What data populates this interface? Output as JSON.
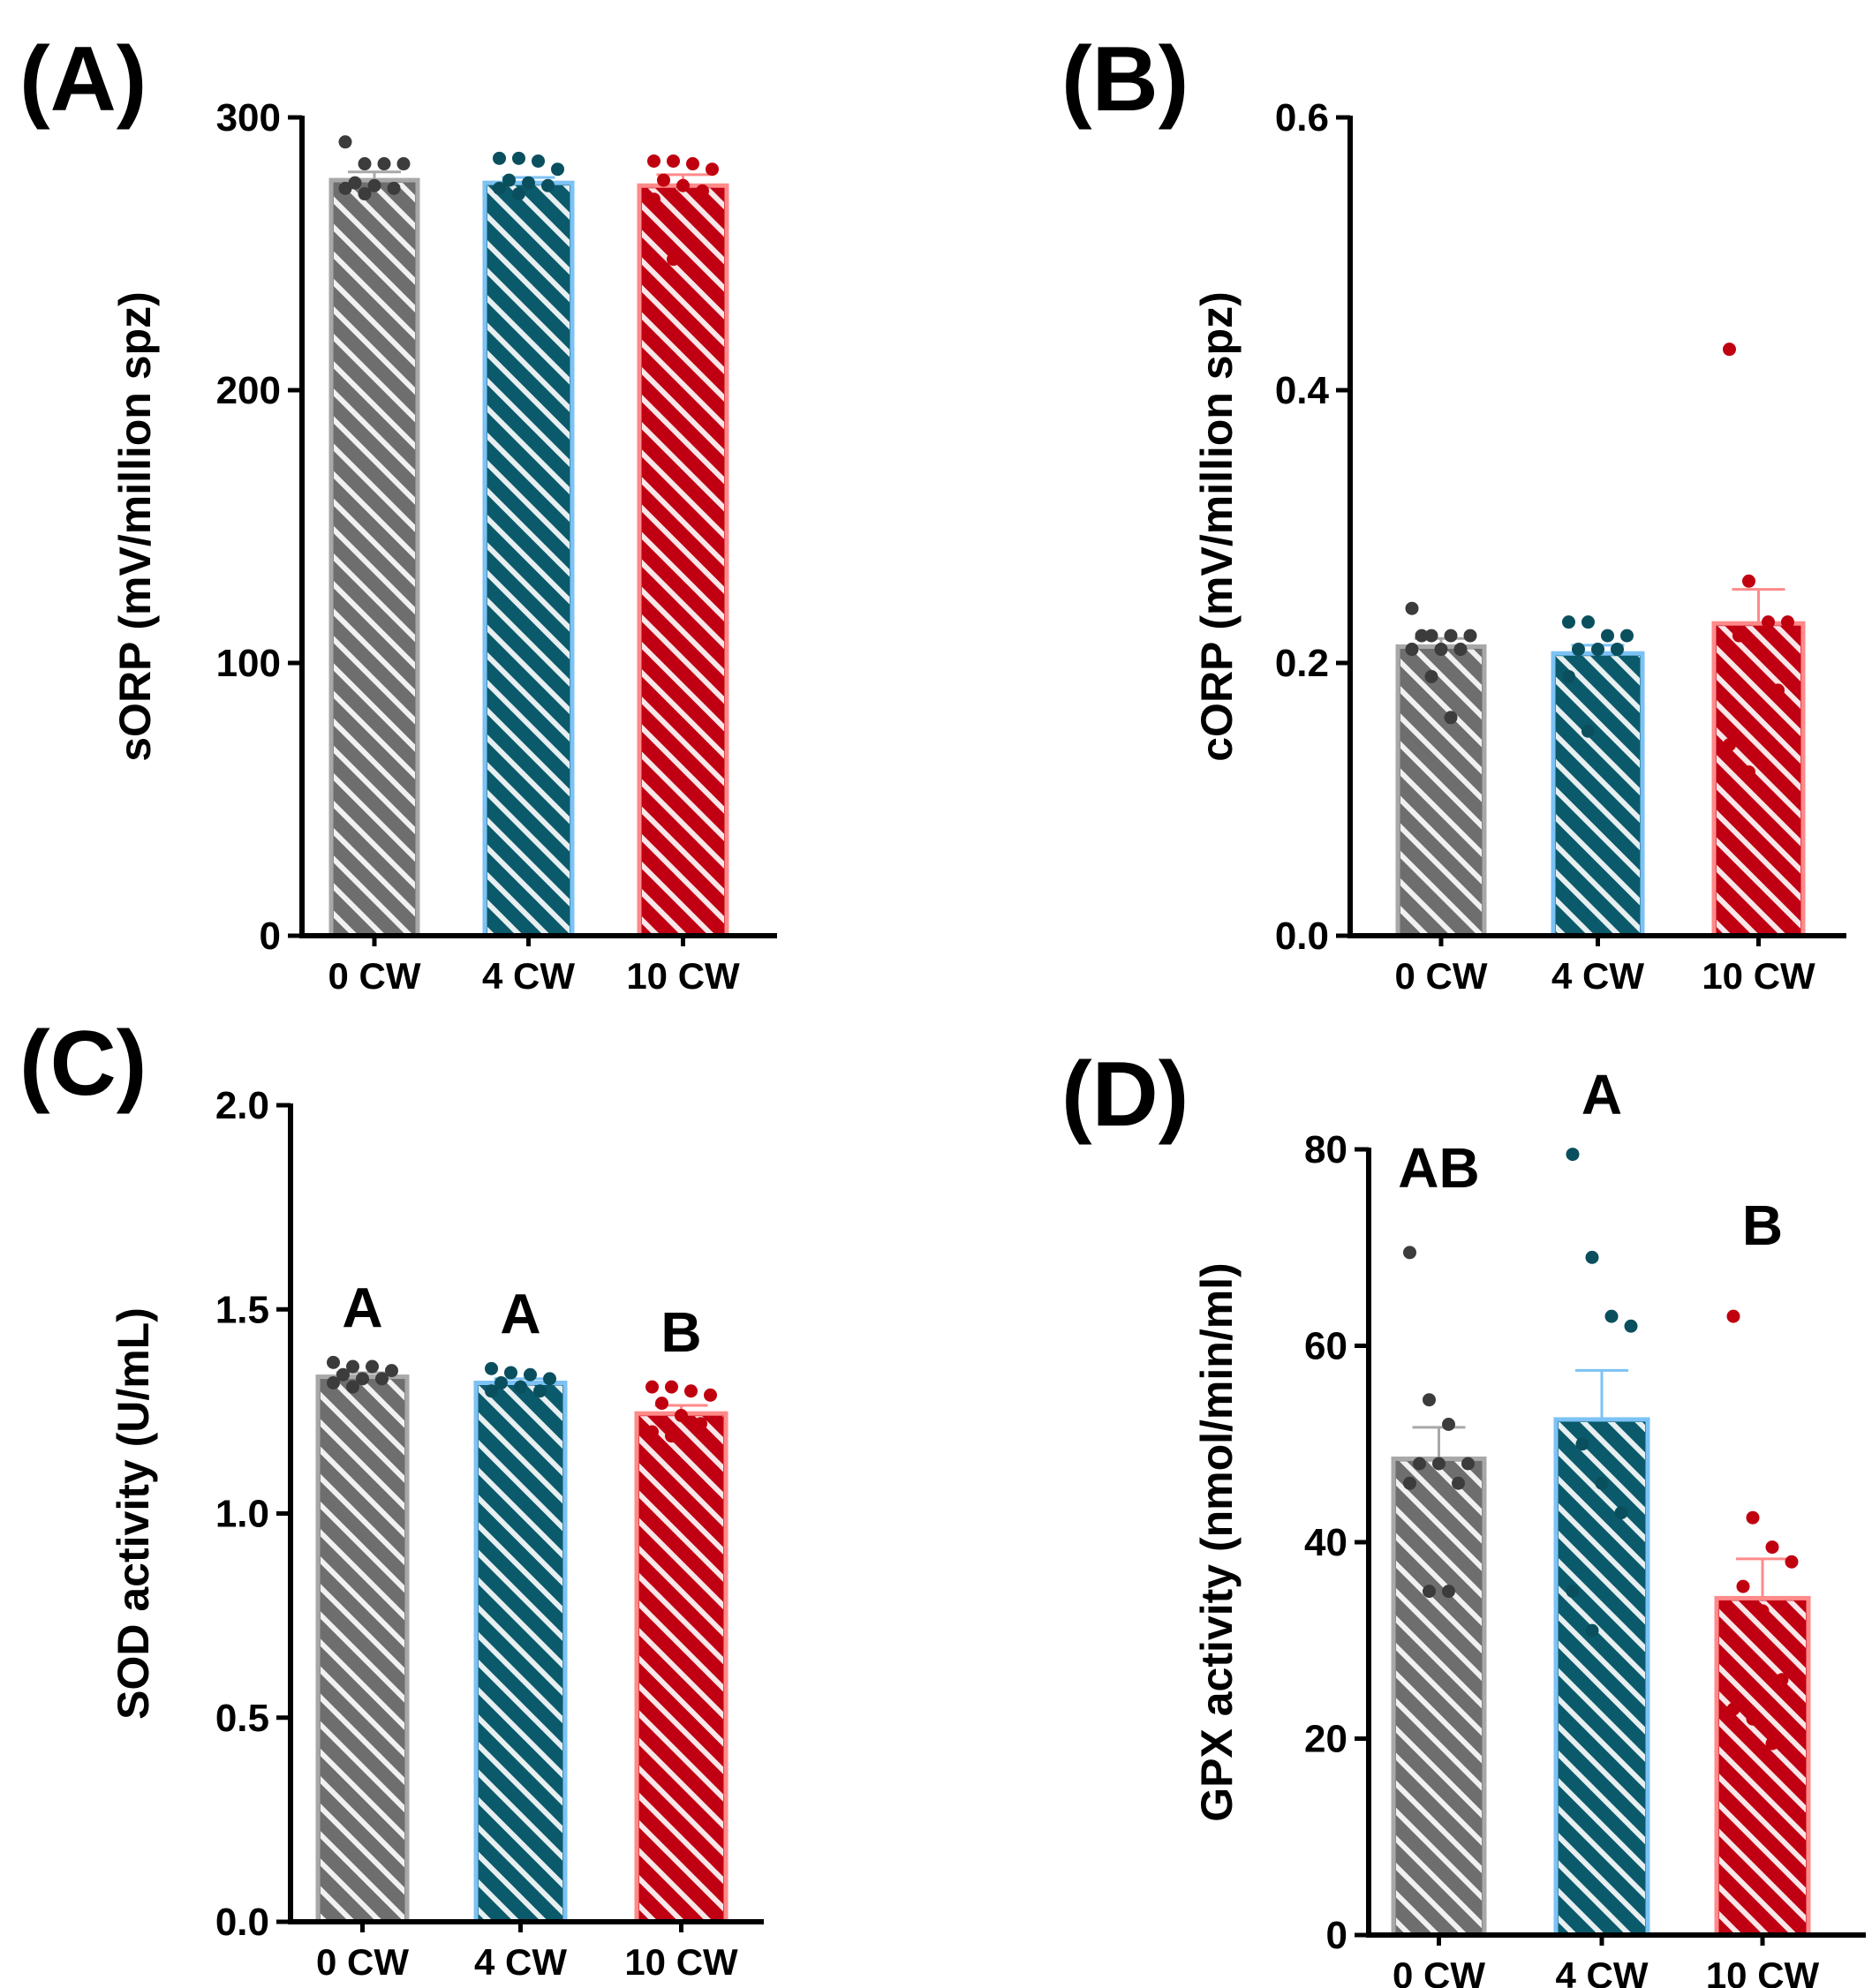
{
  "chart_data": [
    {
      "panel_label": "(A)",
      "type": "bar",
      "ylabel": "sORP (mV/million spz)",
      "categories": [
        "0 CW",
        "4 CW",
        "10 CW"
      ],
      "ylim": [
        0,
        300
      ],
      "yticks": [
        0,
        100,
        200,
        300
      ],
      "ytick_labels": [
        "0",
        "100",
        "200",
        "300"
      ],
      "values": [
        277,
        276,
        275
      ],
      "errors": [
        3,
        2,
        4
      ],
      "points": [
        [
          291,
          283,
          283,
          283,
          276,
          275,
          274,
          274,
          272
        ],
        [
          285,
          285,
          284,
          281,
          277,
          276,
          275,
          274,
          272
        ],
        [
          284,
          284,
          283,
          281,
          277,
          275,
          273,
          270,
          248
        ]
      ],
      "significance_letters": [
        "",
        "",
        ""
      ]
    },
    {
      "panel_label": "(B)",
      "type": "bar",
      "ylabel": "cORP (mV/million spz)",
      "categories": [
        "0 CW",
        "4 CW",
        "10 CW"
      ],
      "ylim": [
        0,
        0.6
      ],
      "yticks": [
        0,
        0.2,
        0.4,
        0.6
      ],
      "ytick_labels": [
        "0.0",
        "0.2",
        "0.4",
        "0.6"
      ],
      "values": [
        0.212,
        0.207,
        0.229
      ],
      "errors": [
        0.006,
        0.006,
        0.025
      ],
      "points": [
        [
          0.24,
          0.22,
          0.22,
          0.22,
          0.22,
          0.21,
          0.21,
          0.21,
          0.19,
          0.16
        ],
        [
          0.23,
          0.23,
          0.22,
          0.22,
          0.21,
          0.21,
          0.21,
          0.19,
          0.15
        ],
        [
          0.43,
          0.26,
          0.23,
          0.23,
          0.22,
          0.21,
          0.18,
          0.14,
          0.12
        ]
      ],
      "significance_letters": [
        "",
        "",
        ""
      ]
    },
    {
      "panel_label": "(C)",
      "type": "bar",
      "ylabel": "SOD activity (U/mL)",
      "categories": [
        "0 CW",
        "4 CW",
        "10 CW"
      ],
      "ylim": [
        0,
        2.0
      ],
      "yticks": [
        0,
        0.5,
        1.0,
        1.5,
        2.0
      ],
      "ytick_labels": [
        "0.0",
        "0.5",
        "1.0",
        "1.5",
        "2.0"
      ],
      "values": [
        1.335,
        1.32,
        1.245
      ],
      "errors": [
        0.01,
        0.01,
        0.02
      ],
      "points": [
        [
          1.37,
          1.36,
          1.36,
          1.35,
          1.34,
          1.33,
          1.33,
          1.32,
          1.31
        ],
        [
          1.355,
          1.345,
          1.34,
          1.33,
          1.32,
          1.31,
          1.3,
          1.3
        ],
        [
          1.31,
          1.31,
          1.3,
          1.29,
          1.27,
          1.24,
          1.22,
          1.2,
          1.19
        ]
      ],
      "significance_letters": [
        "A",
        "A",
        "B"
      ]
    },
    {
      "panel_label": "(D)",
      "type": "bar",
      "ylabel": "GPX activity (nmol/min/ml)",
      "categories": [
        "0 CW",
        "4 CW",
        "10 CW"
      ],
      "ylim": [
        0,
        80
      ],
      "yticks": [
        0,
        20,
        40,
        60,
        80
      ],
      "ytick_labels": [
        "0",
        "20",
        "40",
        "60",
        "80"
      ],
      "values": [
        48.5,
        52.5,
        34.3
      ],
      "errors": [
        3.2,
        5,
        4
      ],
      "points": [
        [
          69.5,
          54.5,
          52,
          48,
          48,
          48,
          46,
          46,
          35,
          35
        ],
        [
          79.5,
          69,
          63,
          62,
          50,
          46,
          43,
          35,
          31
        ],
        [
          63,
          42.5,
          39.5,
          38,
          35.5,
          33,
          26,
          23,
          22,
          19.5
        ]
      ],
      "significance_letters": [
        "AB",
        "A",
        "B"
      ]
    }
  ],
  "colors": {
    "bar_fill": [
      "#6e6e6e",
      "#0b5a6b",
      "#c00012"
    ],
    "bar_edge": [
      "#a8a8a8",
      "#7cc2f5",
      "#ff8a8a"
    ],
    "point": [
      "#3c3c3c",
      "#0a4f5e",
      "#c0000f"
    ],
    "axis": "#000000"
  }
}
